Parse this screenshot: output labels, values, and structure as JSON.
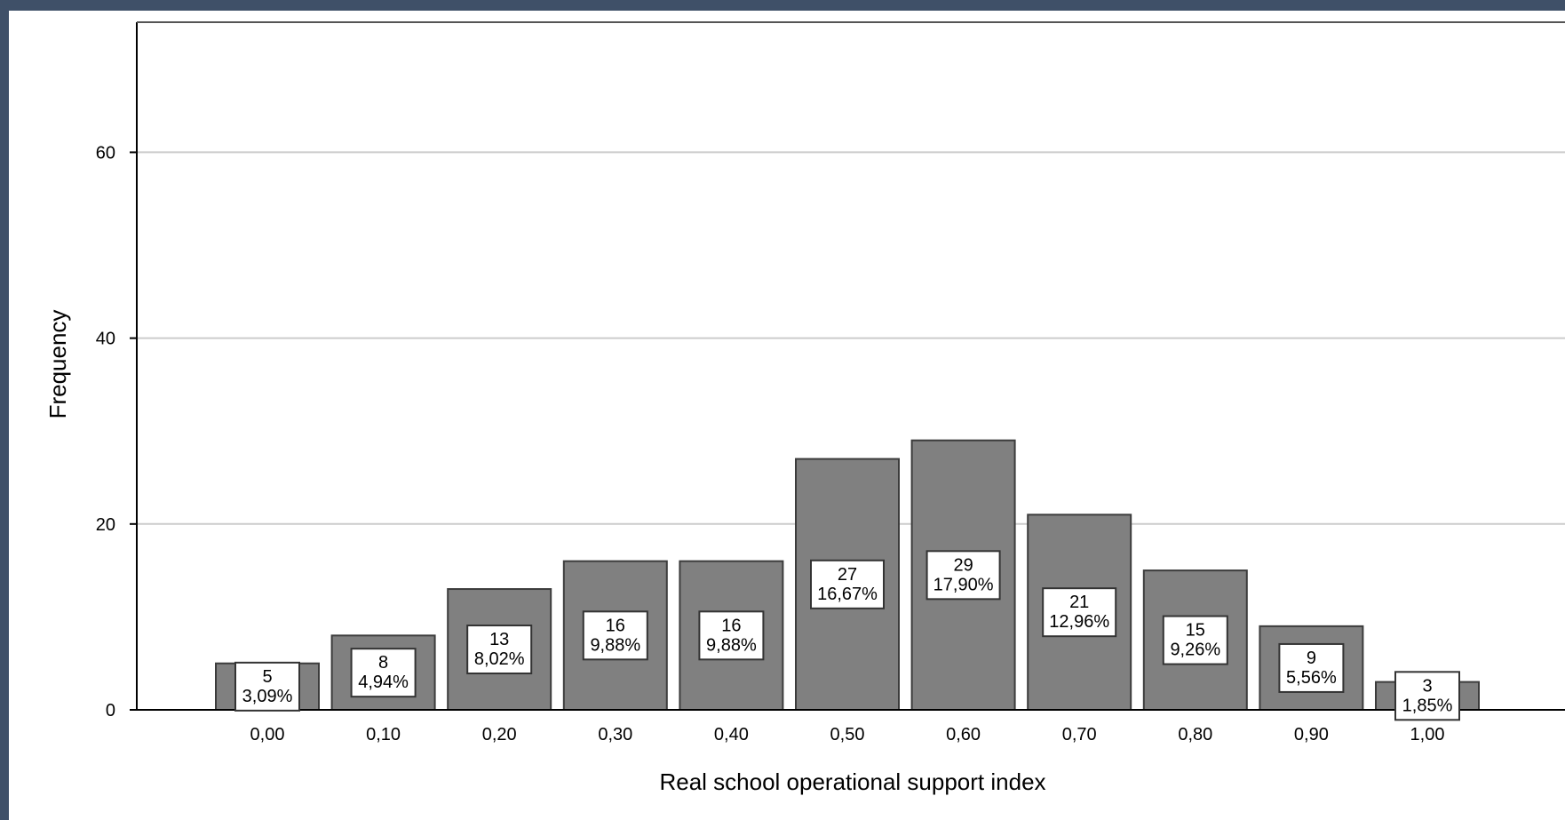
{
  "chart_data": {
    "type": "bar",
    "categories": [
      "0,00",
      "0,10",
      "0,20",
      "0,30",
      "0,40",
      "0,50",
      "0,60",
      "0,70",
      "0,80",
      "0,90",
      "1,00"
    ],
    "values": [
      5,
      8,
      13,
      16,
      16,
      27,
      29,
      21,
      15,
      9,
      3
    ],
    "percent_labels": [
      "3,09%",
      "4,94%",
      "8,02%",
      "9,88%",
      "9,88%",
      "16,67%",
      "17,90%",
      "12,96%",
      "9,26%",
      "5,56%",
      "1,85%"
    ],
    "xlabel": "Real school operational support index",
    "ylabel": "Frequency",
    "ylim": [
      0,
      74
    ],
    "y_ticks": [
      0,
      20,
      40,
      60
    ],
    "grid": true,
    "colors": {
      "bar_fill": "#808080",
      "bar_stroke": "#3c3c3c",
      "label_box_fill": "#ffffff",
      "gridline": "#cccccc",
      "frame_background": "#3f5068"
    }
  }
}
